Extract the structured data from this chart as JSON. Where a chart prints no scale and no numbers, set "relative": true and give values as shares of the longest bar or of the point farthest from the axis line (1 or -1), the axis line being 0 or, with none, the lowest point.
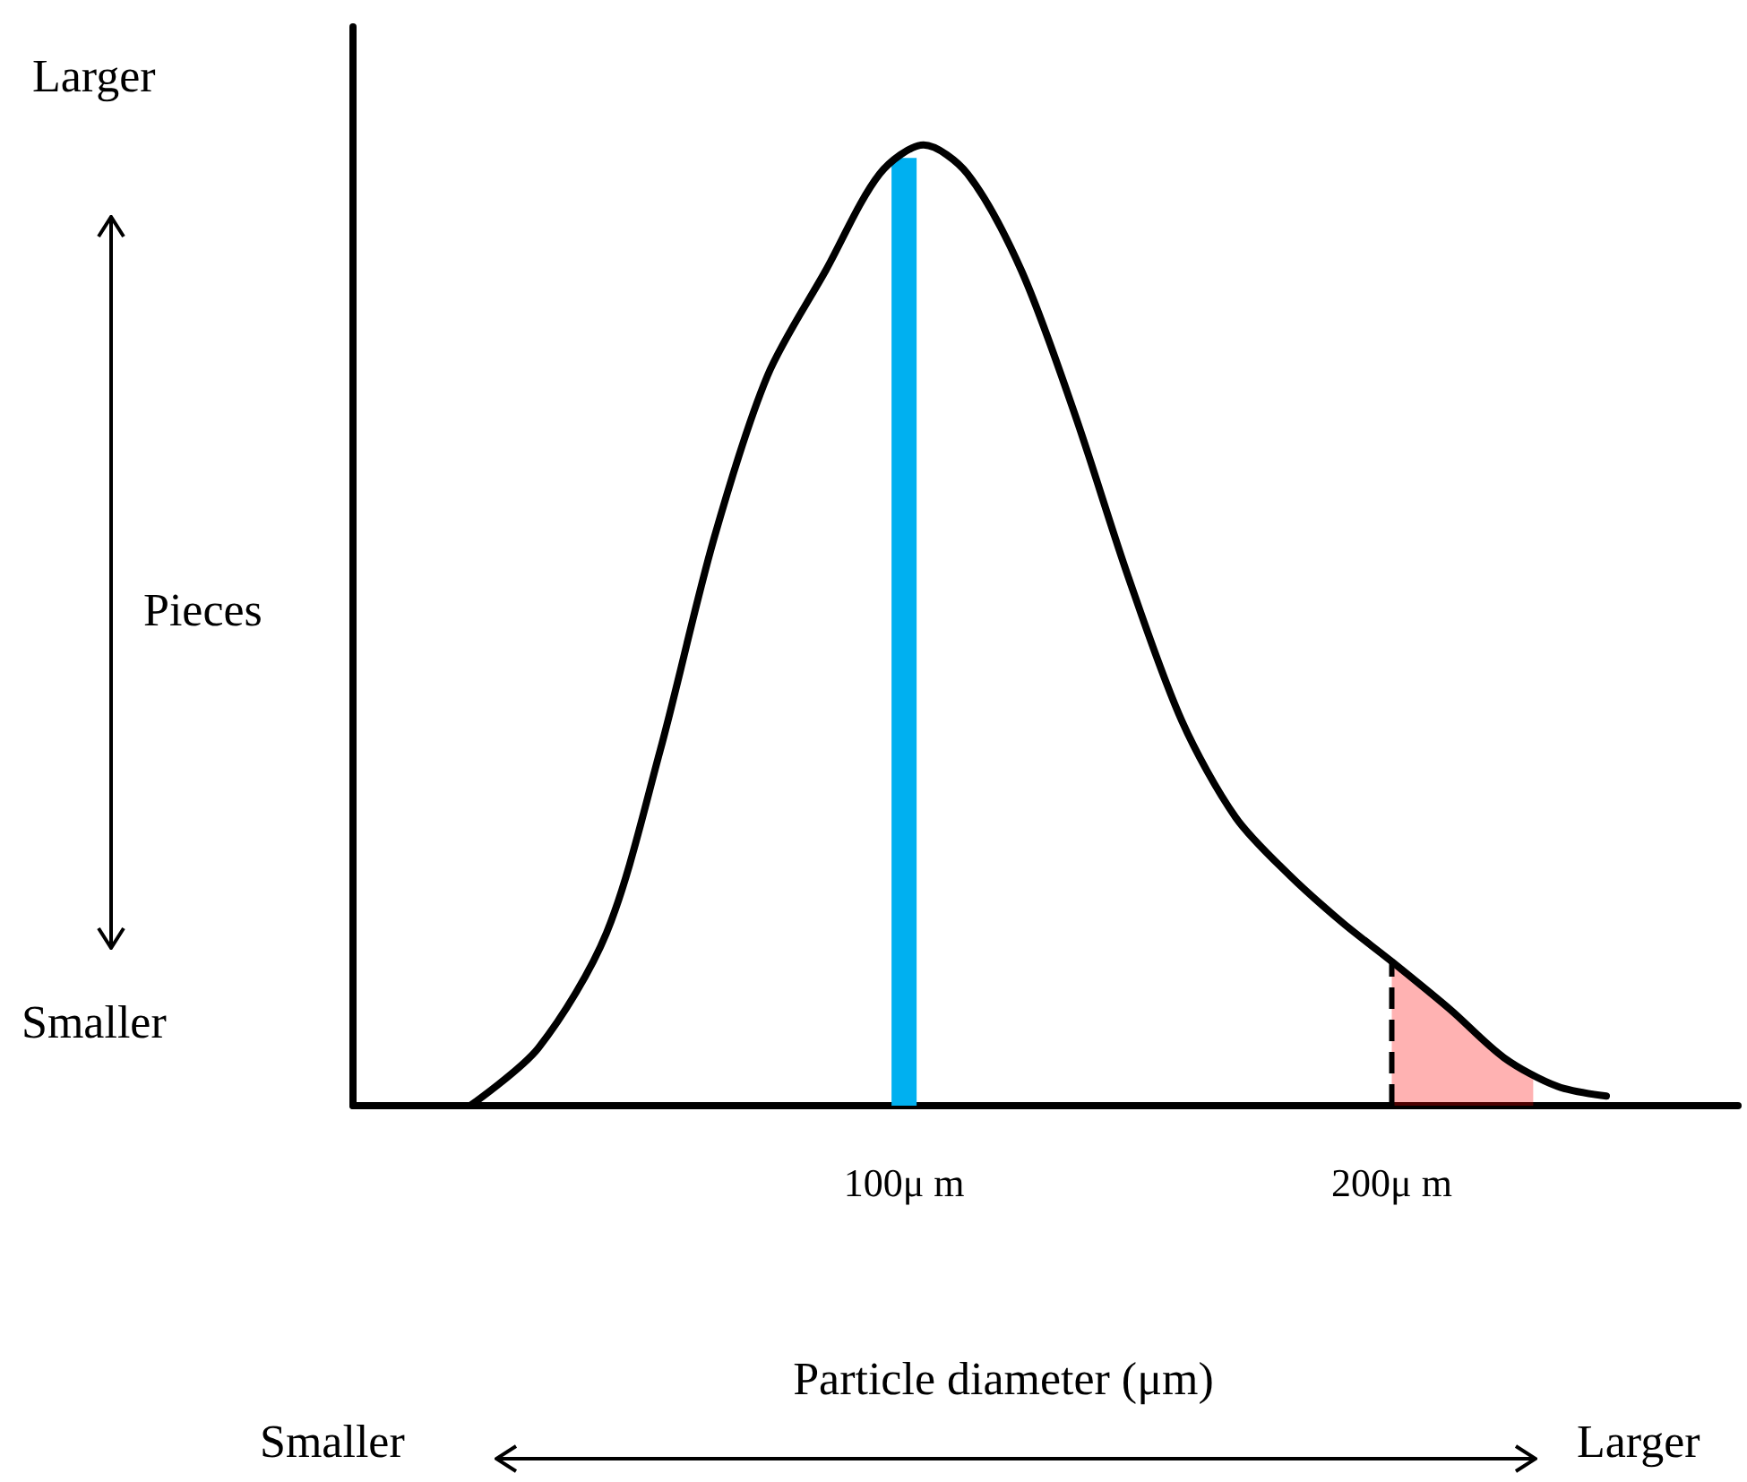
{
  "chart_data": {
    "type": "line",
    "relative": true,
    "xlabel": "Particle diameter (μm)",
    "ylabel": "Pieces",
    "annotations": [
      "Larger",
      "Smaller",
      "Smaller",
      "Larger"
    ],
    "xlim": [
      -13,
      271
    ],
    "xticks": [
      {
        "value": 100,
        "label": "100μ m"
      },
      {
        "value": 200,
        "label": "200μ m"
      }
    ],
    "series": [
      {
        "color": "#000000",
        "x": [
          11,
          25,
          39,
          50,
          61,
          72,
          84,
          95,
          104,
          113,
          124,
          135,
          146,
          157,
          168,
          179,
          190,
          200,
          212,
          223,
          234,
          244
        ],
        "values": [
          0,
          0.06,
          0.18,
          0.37,
          0.59,
          0.76,
          0.87,
          0.97,
          1,
          0.97,
          0.87,
          0.72,
          0.55,
          0.4,
          0.3,
          0.24,
          0.19,
          0.15,
          0.1,
          0.05,
          0.02,
          0.01
        ]
      },
      {
        "type": "area",
        "color": "#ff0000",
        "x": [
          200,
          212,
          223,
          229
        ],
        "values": [
          0.15,
          0.1,
          0.05,
          0.03
        ]
      }
    ],
    "ref_lines": [
      {
        "axis": "x",
        "value": 100,
        "color": "#00b0f0",
        "line_style": "solid"
      },
      {
        "axis": "x",
        "value": 200,
        "color": "#000000",
        "line_style": "dashed"
      }
    ],
    "grid": false,
    "marker": "none"
  }
}
